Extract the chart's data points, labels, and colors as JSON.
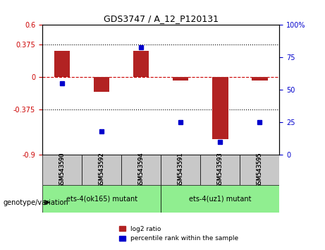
{
  "title": "GDS3747 / A_12_P120131",
  "samples": [
    "GSM543590",
    "GSM543592",
    "GSM543594",
    "GSM543591",
    "GSM543593",
    "GSM543595"
  ],
  "log2_ratio": [
    0.3,
    -0.17,
    0.3,
    -0.04,
    -0.72,
    -0.04
  ],
  "percentile_rank": [
    55,
    18,
    83,
    25,
    10,
    25
  ],
  "group1_label": "ets-4(ok165) mutant",
  "group2_label": "ets-4(uz1) mutant",
  "group1_indices": [
    0,
    1,
    2
  ],
  "group2_indices": [
    3,
    4,
    5
  ],
  "ylabel_left": "",
  "ylabel_right": "",
  "ylim_left": [
    -0.9,
    0.6
  ],
  "ylim_right": [
    0,
    100
  ],
  "yticks_left": [
    -0.9,
    -0.375,
    0,
    0.375,
    0.6
  ],
  "yticks_right": [
    0,
    25,
    50,
    75,
    100
  ],
  "hline_dotted": [
    0.375,
    -0.375
  ],
  "hline_dash": 0,
  "bar_color": "#b22222",
  "dot_color": "#0000cc",
  "bg_color": "#ffffff",
  "group1_bg": "#90ee90",
  "group2_bg": "#90ee90",
  "tick_label_area_bg": "#c8c8c8",
  "legend_red_label": "log2 ratio",
  "legend_blue_label": "percentile rank within the sample"
}
